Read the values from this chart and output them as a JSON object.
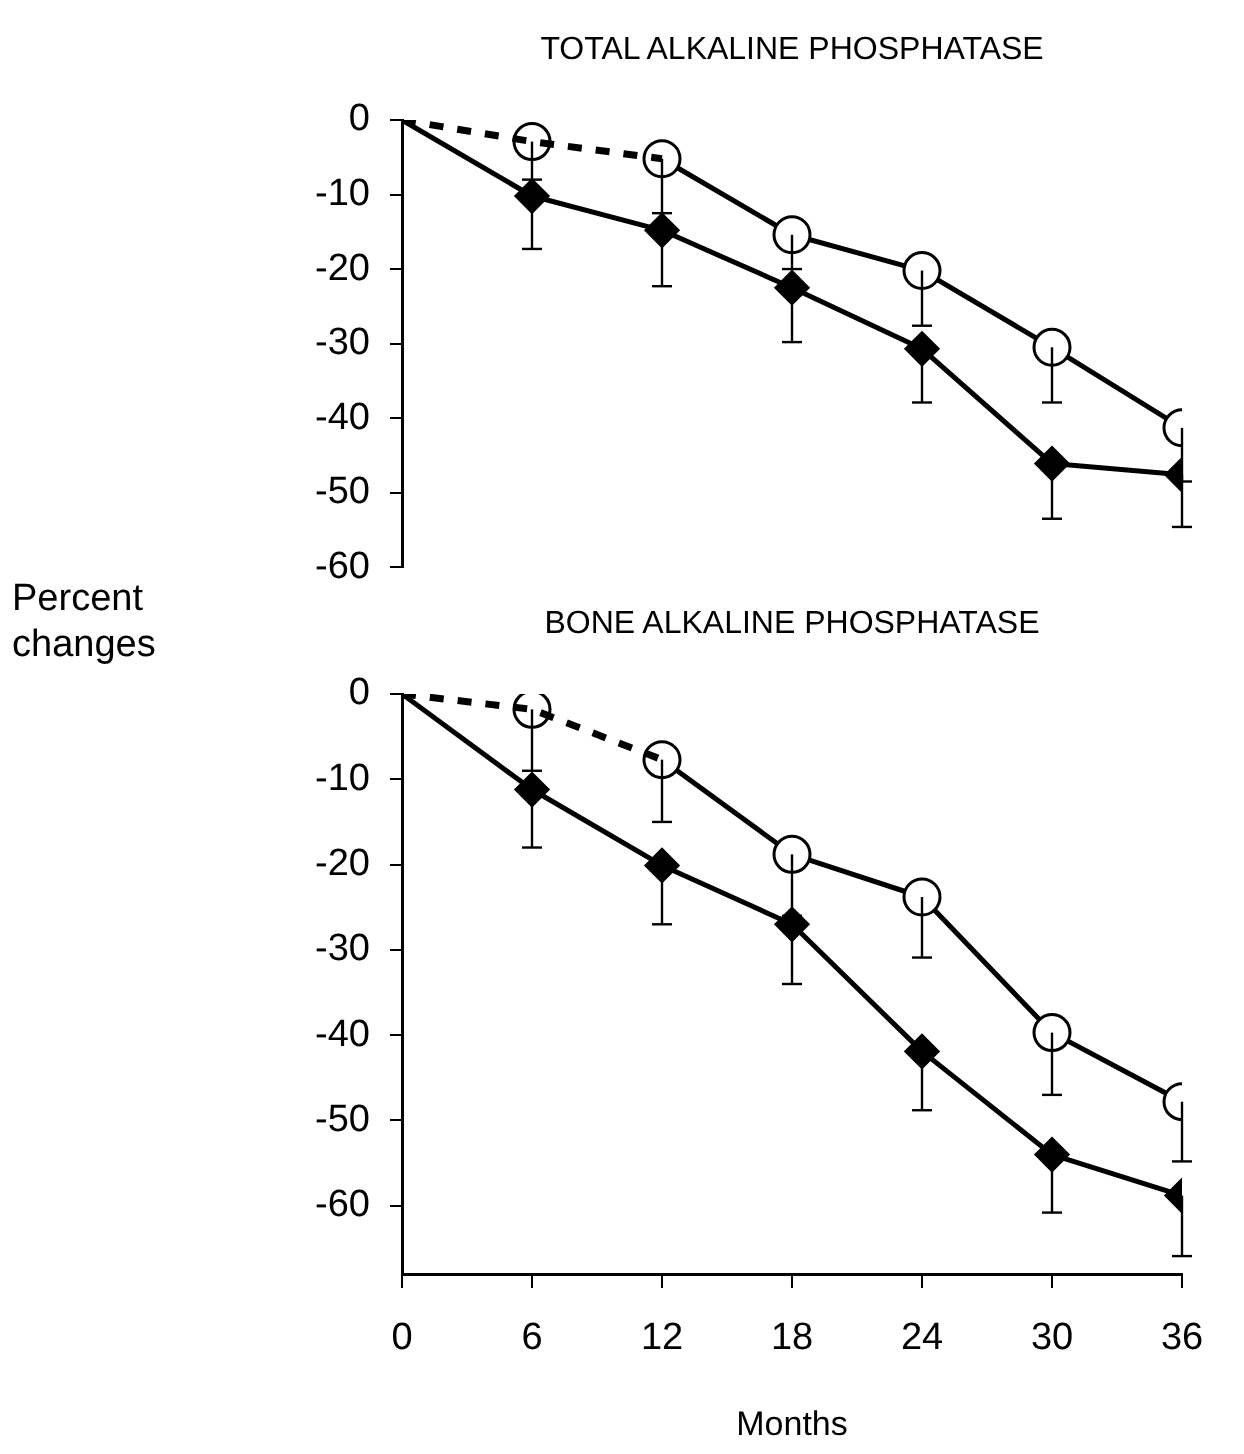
{
  "chart_data": [
    {
      "type": "line",
      "title": "TOTAL ALKALINE PHOSPHATASE",
      "ylabel": "Percent changes",
      "xlim": [
        0,
        36
      ],
      "xticks": [
        0,
        6,
        12,
        18,
        24,
        30,
        36
      ],
      "ylim": [
        -60,
        0
      ],
      "yticks": [
        0,
        -10,
        -20,
        -30,
        -40,
        -50,
        -60
      ],
      "tick_labels": "y",
      "series": [
        {
          "color": "#000000",
          "x": [
            0,
            6
          ],
          "values": [
            0,
            -10.2
          ],
          "line_style": "solid"
        },
        {
          "color": "#000000",
          "x": [
            6,
            12,
            18,
            24,
            30,
            36
          ],
          "values": [
            -10.2,
            -14.8,
            -22.5,
            -30.7,
            -46.1,
            -47.6
          ],
          "errors": [
            [
              -17.3,
              -10.2
            ],
            [
              -22.3,
              -14.8
            ],
            [
              -29.8,
              -22.5
            ],
            [
              -37.9,
              -30.7
            ],
            [
              -53.5,
              -46.1
            ],
            [
              -54.6,
              -47.6
            ]
          ],
          "marker": "diamond",
          "line_style": "solid"
        },
        {
          "color": "#000000",
          "x": [
            0,
            6,
            12
          ],
          "values": [
            0,
            -2.9,
            -5.2
          ],
          "marker": "none",
          "line_style": "dashed"
        },
        {
          "type": "scatter",
          "color": "#000000",
          "x": [
            6
          ],
          "values": [
            -2.9
          ],
          "errors": [
            [
              -8,
              -2.9
            ]
          ],
          "marker": "circle"
        },
        {
          "color": "#000000",
          "x": [
            12,
            18,
            24,
            30,
            36
          ],
          "values": [
            -5.2,
            -15.4,
            -20.2,
            -30.5,
            -41.3
          ],
          "errors": [
            [
              -12.5,
              -5.2
            ],
            [
              -20,
              -15.4
            ],
            [
              -27.6,
              -20.2
            ],
            [
              -37.9,
              -30.5
            ],
            [
              -48.5,
              -41.3
            ]
          ],
          "marker": "circle",
          "line_style": "solid"
        }
      ]
    },
    {
      "type": "line",
      "title": "BONE ALKALINE PHOSPHATASE",
      "xlabel": "Months",
      "xlim": [
        0,
        36
      ],
      "xticks": [
        0,
        6,
        12,
        18,
        24,
        30,
        36
      ],
      "ylim": [
        -68,
        0
      ],
      "yticks": [
        0,
        -10,
        -20,
        -30,
        -40,
        -50,
        -60
      ],
      "series": [
        {
          "color": "#000000",
          "x": [
            0,
            6
          ],
          "values": [
            0,
            -11.2
          ],
          "line_style": "solid"
        },
        {
          "color": "#000000",
          "x": [
            6,
            12,
            18,
            24,
            30,
            36
          ],
          "values": [
            -11.2,
            -20.1,
            -27,
            -41.9,
            -54,
            -58.8
          ],
          "errors": [
            [
              -18,
              -11.2
            ],
            [
              -27,
              -20.1
            ],
            [
              -34,
              -27
            ],
            [
              -48.8,
              -41.9
            ],
            [
              -60.8,
              -54
            ],
            [
              -65.9,
              -58.8
            ]
          ],
          "marker": "diamond",
          "line_style": "solid"
        },
        {
          "color": "#000000",
          "x": [
            0,
            6,
            12
          ],
          "values": [
            0,
            -1.8,
            -7.7
          ],
          "marker": "none",
          "line_style": "dashed"
        },
        {
          "type": "scatter",
          "color": "#000000",
          "x": [
            6
          ],
          "values": [
            -1.8
          ],
          "errors": [
            [
              -9,
              -1.8
            ]
          ],
          "marker": "circle"
        },
        {
          "color": "#000000",
          "x": [
            12,
            18,
            24,
            30,
            36
          ],
          "values": [
            -7.7,
            -18.8,
            -23.8,
            -39.7,
            -47.8
          ],
          "errors": [
            [
              -15,
              -7.7
            ],
            [
              -26,
              -18.8
            ],
            [
              -30.9,
              -23.8
            ],
            [
              -47,
              -39.7
            ],
            [
              -54.8,
              -47.8
            ]
          ],
          "marker": "circle",
          "line_style": "solid"
        }
      ]
    }
  ]
}
